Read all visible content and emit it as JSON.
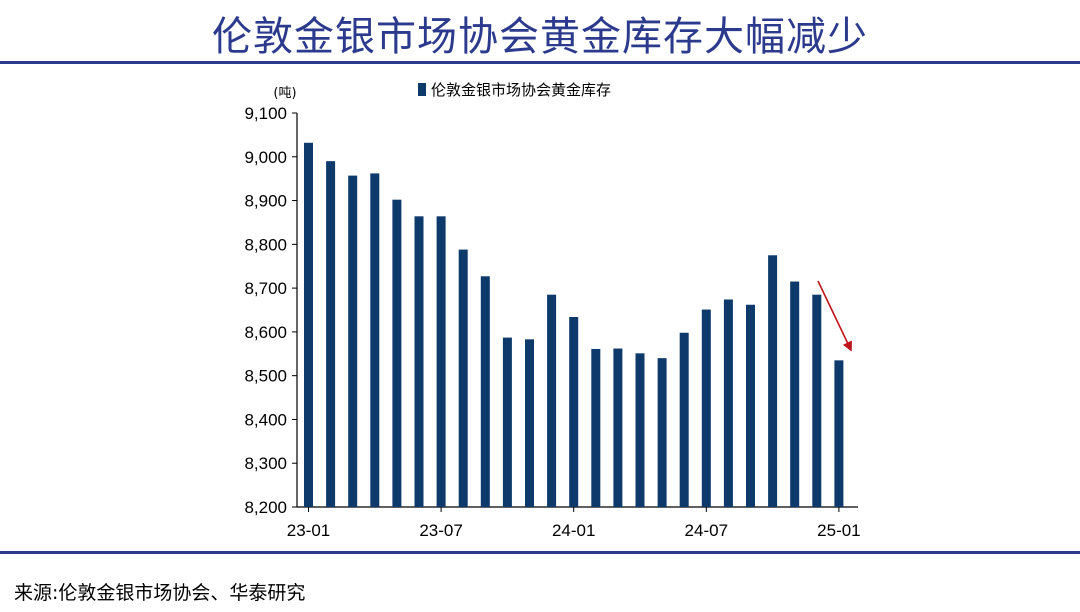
{
  "title": "伦敦金银市场协会黄金库存大幅减少",
  "source": "来源:伦敦金银市场协会、华泰研究",
  "chart_data": {
    "type": "bar",
    "unit_label": "(吨)",
    "legend": "伦敦金银市场协会黄金库存",
    "legend_position": "top",
    "bar_color": "#0d3a6b",
    "arrow_color": "#c0141b",
    "ylim": [
      8200,
      9100
    ],
    "yticks": [
      8200,
      8300,
      8400,
      8500,
      8600,
      8700,
      8800,
      8900,
      9000,
      9100
    ],
    "ytick_labels": [
      "8,200",
      "8,300",
      "8,400",
      "8,500",
      "8,600",
      "8,700",
      "8,800",
      "8,900",
      "9,000",
      "9,100"
    ],
    "grid": false,
    "categories": [
      "23-01",
      "23-02",
      "23-03",
      "23-04",
      "23-05",
      "23-06",
      "23-07",
      "23-08",
      "23-09",
      "23-10",
      "23-11",
      "23-12",
      "24-01",
      "24-02",
      "24-03",
      "24-04",
      "24-05",
      "24-06",
      "24-07",
      "24-08",
      "24-09",
      "24-10",
      "24-11",
      "24-12",
      "25-01"
    ],
    "xtick_labels": [
      {
        "index": 0,
        "label": "23-01"
      },
      {
        "index": 6,
        "label": "23-07"
      },
      {
        "index": 12,
        "label": "24-01"
      },
      {
        "index": 18,
        "label": "24-07"
      },
      {
        "index": 24,
        "label": "25-01"
      }
    ],
    "series": [
      {
        "name": "伦敦金银市场协会黄金库存",
        "values": [
          9032,
          8990,
          8957,
          8962,
          8902,
          8864,
          8864,
          8788,
          8727,
          8587,
          8583,
          8685,
          8634,
          8561,
          8562,
          8551,
          8540,
          8598,
          8651,
          8674,
          8662,
          8775,
          8715,
          8685,
          8535
        ]
      }
    ]
  }
}
